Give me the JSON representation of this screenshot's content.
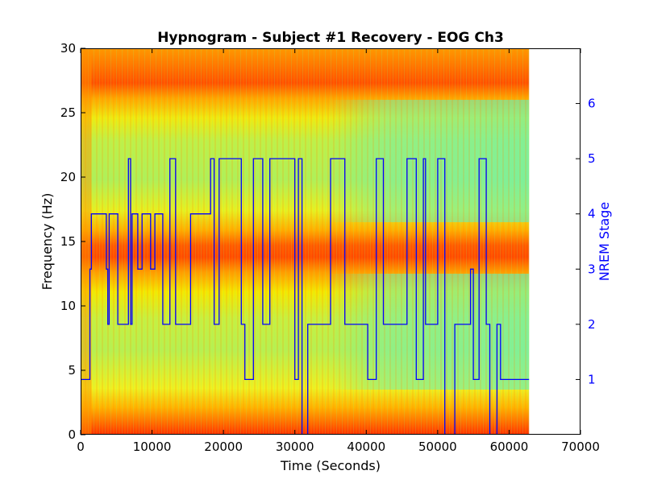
{
  "chart_data": {
    "type": "heatmap",
    "title": "Hypnogram - Subject #1 Recovery - EOG Ch3",
    "xlabel": "Time (Seconds)",
    "ylabel": "Frequency (Hz)",
    "y2label": "NREM Stage",
    "xlim": [
      0,
      70000
    ],
    "ylim": [
      0,
      30
    ],
    "y2lim": [
      0,
      7
    ],
    "x_ticks": [
      "0",
      "10000",
      "20000",
      "30000",
      "40000",
      "50000",
      "60000",
      "70000"
    ],
    "y_ticks": [
      "0",
      "5",
      "10",
      "15",
      "20",
      "25",
      "30"
    ],
    "y2_ticks": [
      "1",
      "2",
      "3",
      "4",
      "5",
      "6"
    ],
    "spectrogram": {
      "x_range": [
        0,
        62800
      ],
      "y_range": [
        0,
        30
      ],
      "colormap": "jet",
      "high_power_bands_hz": [
        [
          0,
          2
        ],
        [
          13.5,
          15.5
        ],
        [
          27,
          30
        ]
      ]
    },
    "series": [
      {
        "name": "",
        "color": "#0000ff",
        "x": [
          0,
          1300,
          1300,
          1500,
          1500,
          3600,
          3600,
          3800,
          3800,
          4000,
          4000,
          5200,
          5200,
          6700,
          6700,
          7000,
          7000,
          7200,
          7200,
          8000,
          8000,
          8600,
          8600,
          9800,
          9800,
          10400,
          10400,
          11500,
          11500,
          12500,
          12500,
          13300,
          13300,
          15400,
          15400,
          18200,
          18200,
          18700,
          18700,
          19400,
          19400,
          22500,
          22500,
          23000,
          23000,
          24200,
          24200,
          25500,
          25500,
          26500,
          26500,
          30000,
          30000,
          30500,
          30500,
          31000,
          31000,
          31800,
          31800,
          35000,
          35000,
          37000,
          37000,
          40200,
          40200,
          41400,
          41400,
          42400,
          42400,
          45700,
          45700,
          47000,
          47000,
          48000,
          48000,
          48300,
          48300,
          50000,
          50000,
          51000,
          51000,
          52400,
          52400,
          54600,
          54600,
          55000,
          55000,
          55800,
          55800,
          56800,
          56800,
          57300,
          57300,
          58300,
          58300,
          58800,
          58800,
          62800
        ],
        "y": [
          1,
          1,
          3,
          3,
          4,
          4,
          3,
          3,
          2,
          2,
          4,
          4,
          2,
          2,
          5,
          5,
          2,
          2,
          4,
          4,
          3,
          3,
          4,
          4,
          3,
          3,
          4,
          4,
          2,
          2,
          5,
          5,
          2,
          2,
          4,
          4,
          5,
          5,
          2,
          2,
          5,
          5,
          2,
          2,
          1,
          1,
          5,
          5,
          2,
          2,
          5,
          5,
          1,
          1,
          5,
          5,
          0,
          0,
          2,
          2,
          5,
          5,
          2,
          2,
          1,
          1,
          5,
          5,
          2,
          2,
          5,
          5,
          1,
          1,
          5,
          5,
          2,
          2,
          5,
          5,
          0,
          0,
          2,
          2,
          3,
          3,
          1,
          1,
          5,
          5,
          2,
          2,
          0,
          0,
          2,
          2,
          1,
          1
        ]
      }
    ]
  }
}
